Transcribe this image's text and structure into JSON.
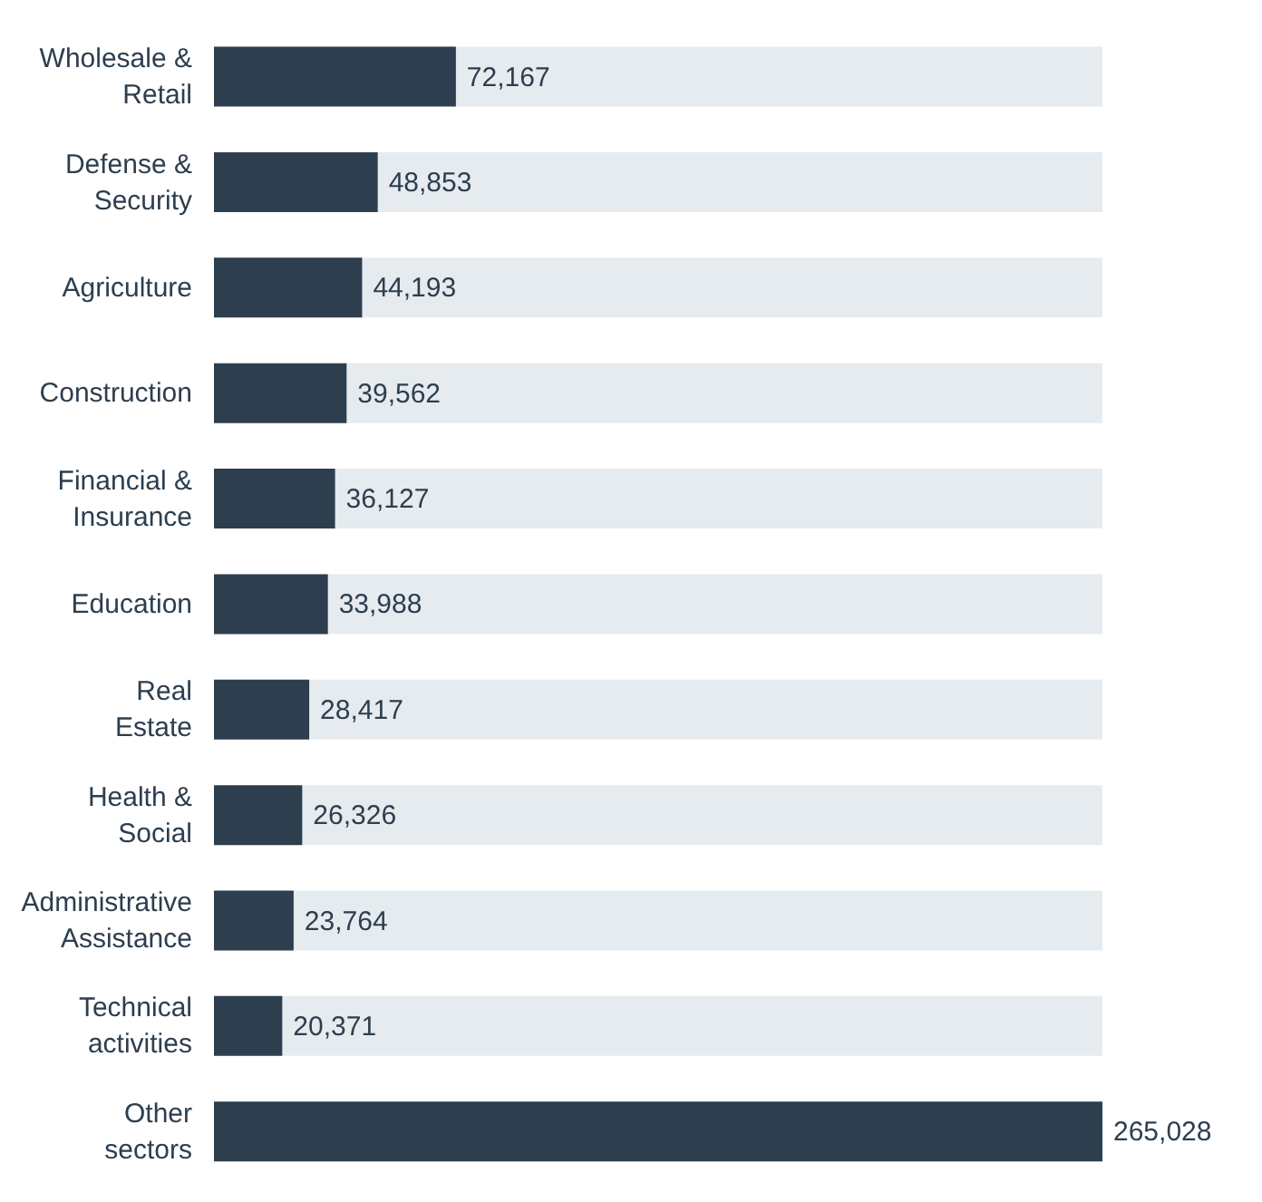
{
  "chart_data": {
    "type": "bar",
    "orientation": "horizontal",
    "categories": [
      "Wholesale & Retail",
      "Defense & Security",
      "Agriculture",
      "Construction",
      "Financial & Insurance",
      "Education",
      "Real Estate",
      "Health & Social",
      "Administrative Assistance",
      "Technical activities",
      "Other sectors"
    ],
    "values": [
      72167,
      48853,
      44193,
      39562,
      36127,
      33988,
      28417,
      26326,
      23764,
      20371,
      265028
    ],
    "value_labels": [
      "72,167",
      "48,853",
      "44,193",
      "39,562",
      "36,127",
      "33,988",
      "28,417",
      "26,326",
      "23,764",
      "20,371",
      "265,028"
    ],
    "color": "#2d3e4e"
  }
}
